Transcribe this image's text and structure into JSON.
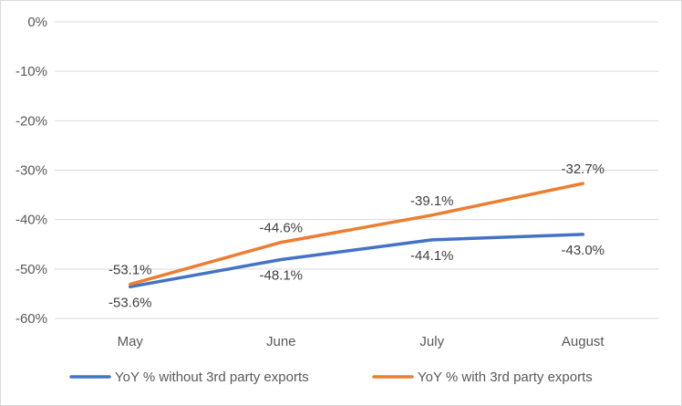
{
  "chart_data": {
    "type": "line",
    "title": "",
    "xlabel": "",
    "ylabel": "",
    "categories": [
      "May",
      "June",
      "July",
      "August"
    ],
    "ylim": [
      -60,
      0
    ],
    "y_ticks": [
      0,
      -10,
      -20,
      -30,
      -40,
      -50,
      -60
    ],
    "y_tick_labels": [
      "0%",
      "-10%",
      "-20%",
      "-30%",
      "-40%",
      "-50%",
      "-60%"
    ],
    "grid": true,
    "legend_position": "bottom",
    "series": [
      {
        "name": "YoY % without 3rd party exports",
        "values": [
          -53.6,
          -48.1,
          -44.1,
          -43.0
        ],
        "labels": [
          "-53.6%",
          "-48.1%",
          "-44.1%",
          "-43.0%"
        ],
        "label_position": "below",
        "color": "#4472C4"
      },
      {
        "name": "YoY % with 3rd party exports",
        "values": [
          -53.1,
          -44.6,
          -39.1,
          -32.7
        ],
        "labels": [
          "-53.1%",
          "-44.6%",
          "-39.1%",
          "-32.7%"
        ],
        "label_position": "above",
        "color": "#ED7D31"
      }
    ]
  }
}
